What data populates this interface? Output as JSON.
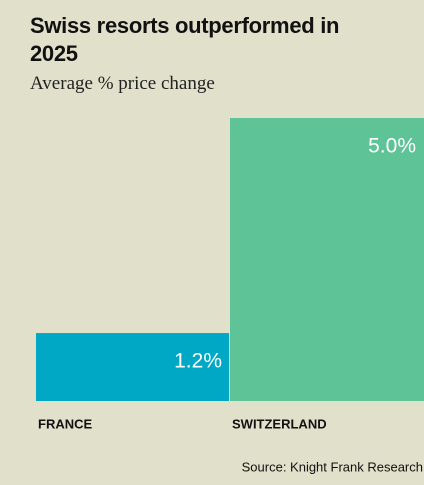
{
  "chart_data": {
    "type": "bar",
    "title": "Swiss resorts outperformed in 2025",
    "subtitle": "Average % price change",
    "categories": [
      "FRANCE",
      "SWITZERLAND"
    ],
    "values": [
      1.2,
      5.0
    ],
    "value_labels": [
      "1.2%",
      "5.0%"
    ],
    "colors": [
      "#00a8c6",
      "#5ec396"
    ],
    "source": "Source: Knight Frank Research"
  }
}
